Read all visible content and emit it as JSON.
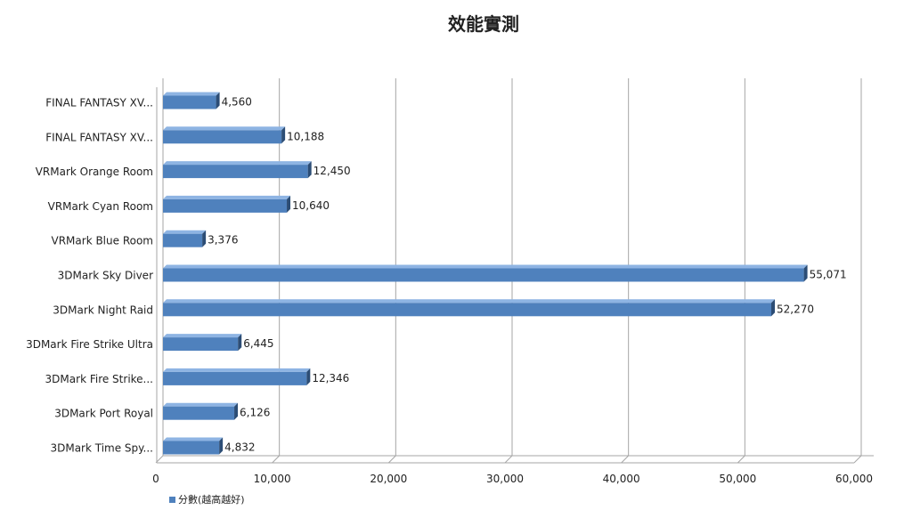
{
  "chart_data": {
    "type": "bar",
    "orientation": "horizontal",
    "title": "效能實測",
    "xlabel": "",
    "ylabel": "",
    "categories": [
      "FINAL FANTASY XV...",
      "FINAL FANTASY XV...",
      "VRMark Orange Room",
      "VRMark Cyan Room",
      "VRMark Blue Room",
      "3DMark Sky Diver",
      "3DMark Night Raid",
      "3DMark Fire Strike Ultra",
      "3DMark Fire Strike...",
      "3DMark Port Royal",
      "3DMark Time Spy..."
    ],
    "series": [
      {
        "name": "分數(越高越好)",
        "values": [
          4560,
          10188,
          12450,
          10640,
          3376,
          55071,
          52270,
          6445,
          12346,
          6126,
          4832
        ],
        "labels": [
          "4,560",
          "10,188",
          "12,450",
          "10,640",
          "3,376",
          "55,071",
          "52,270",
          "6,445",
          "12,346",
          "6,126",
          "4,832"
        ]
      }
    ],
    "xlim": [
      0,
      60000
    ],
    "xticks": [
      0,
      10000,
      20000,
      30000,
      40000,
      50000,
      60000
    ],
    "xtick_labels": [
      "0",
      "10,000",
      "20,000",
      "30,000",
      "40,000",
      "50,000",
      "60,000"
    ],
    "grid": true,
    "legend_position": "bottom-left",
    "colors": {
      "bar_front": "#4F81BD",
      "bar_top": "#8EB4E3",
      "bar_side": "#2C4D75",
      "grid": "#A6A6A6"
    }
  }
}
